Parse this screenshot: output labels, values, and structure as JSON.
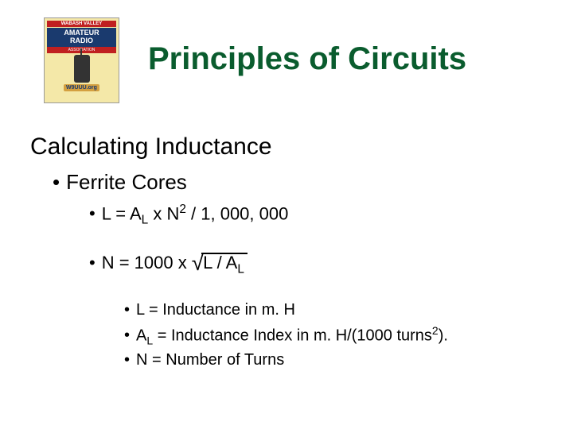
{
  "logo": {
    "banner": "WABASH VALLEY",
    "main_line1": "AMATEUR",
    "main_line2": "RADIO",
    "assoc": "ASSOCIATION",
    "url": "W9UUU.org"
  },
  "title": "Principles of Circuits",
  "subtitle": "Calculating Inductance",
  "bullets": {
    "lvl1": "Ferrite Cores",
    "formula_L_prefix": "L = A",
    "formula_L_sub": "L",
    "formula_L_mid": " x N",
    "formula_L_sup": "2",
    "formula_L_suffix": " / 1, 000, 000",
    "formula_N_prefix": "N = 1000 x",
    "formula_N_sqrt_inner1": "L / A",
    "formula_N_sqrt_sub": "L",
    "def_L": "L = Inductance in m. H",
    "def_AL_prefix": "A",
    "def_AL_sub": "L",
    "def_AL_mid": " = Inductance Index in m. H/(1000 turns",
    "def_AL_sup": "2",
    "def_AL_suffix": ").",
    "def_N": "N = Number of Turns"
  },
  "colors": {
    "title_color": "#0a5c2e",
    "text_color": "#000000",
    "background": "#ffffff"
  }
}
